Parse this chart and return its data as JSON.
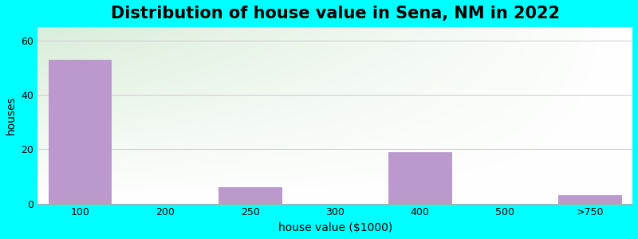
{
  "title": "Distribution of house value in Sena, NM in 2022",
  "xlabel": "house value ($1000)",
  "ylabel": "houses",
  "categories": [
    "100",
    "200",
    "250",
    "300",
    "400",
    "500",
    ">750"
  ],
  "values": [
    53,
    0,
    6,
    0,
    19,
    0,
    3
  ],
  "bar_color": "#bb99cc",
  "bar_width": 0.75,
  "ylim": [
    0,
    65
  ],
  "yticks": [
    0,
    20,
    40,
    60
  ],
  "background_color": "#00FFFF",
  "plot_bg_topleft": "#ddeedd",
  "plot_bg_right": "#f5fff5",
  "plot_bg_bottom": "#ffffff",
  "title_fontsize": 15,
  "axis_label_fontsize": 10,
  "tick_fontsize": 9,
  "grid_color": "#cccccc"
}
